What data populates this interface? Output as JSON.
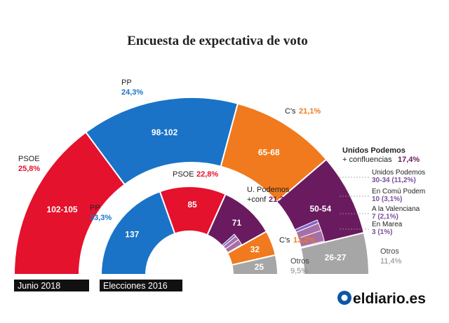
{
  "title": "Encuesta de expectativa de voto",
  "colors": {
    "psoe": "#e4122d",
    "pp": "#1a73c7",
    "cs": "#f07a1d",
    "podemos": "#6a1b5f",
    "podemos_sub": "#a86ea6",
    "enmarea": "#7f66c9",
    "otros": "#a6a6a6",
    "brand_blue": "#0b56a4"
  },
  "chart_data": [
    {
      "type": "donut-half",
      "name": "Junio 2018",
      "segments": [
        {
          "party": "PSOE",
          "label": "PSOE",
          "pct": "25,8%",
          "seats": "102-105",
          "value": 103.5,
          "color": "#e4122d"
        },
        {
          "party": "PP",
          "label": "PP",
          "pct": "24,3%",
          "seats": "98-102",
          "value": 100,
          "color": "#1a73c7"
        },
        {
          "party": "C's",
          "label": "C's",
          "pct": "21,1%",
          "seats": "65-68",
          "value": 66.5,
          "color": "#f07a1d"
        },
        {
          "party": "Unidos Podemos + confluencias",
          "label": "Unidos Podemos + confluencias",
          "label_lines": [
            "Unidos Podemos",
            "+ confluencias"
          ],
          "pct": "17,4%",
          "seats": "50-54",
          "value": 52,
          "color": "#6a1b5f",
          "subsegments": [
            {
              "label": "Unidos Podemos",
              "value_text": "30-34 (11,2%)",
              "value": 32
            },
            {
              "label": "En Comú Podem",
              "value_text": "10 (3,1%)",
              "value": 10
            },
            {
              "label": "A la Valenciana",
              "value_text": "7 (2,1%)",
              "value": 7
            },
            {
              "label": "En Marea",
              "value_text": "3 (1%)",
              "value": 3
            }
          ]
        },
        {
          "party": "Otros",
          "label": "Otros",
          "pct": "11,4%",
          "seats": "26-27",
          "value": 26.5,
          "color": "#a6a6a6"
        }
      ]
    },
    {
      "type": "donut-half",
      "name": "Elecciones 2016",
      "segments": [
        {
          "party": "PP",
          "label": "PP",
          "pct": "33,3%",
          "seats": "137",
          "value": 137,
          "color": "#1a73c7"
        },
        {
          "party": "PSOE",
          "label": "PSOE",
          "pct": "22,8%",
          "seats": "85",
          "value": 85,
          "color": "#e4122d"
        },
        {
          "party": "U. Podemos +conf",
          "label": "U. Podemos +conf",
          "label_lines": [
            "U. Podemos",
            "+conf"
          ],
          "pct": "21,3%",
          "seats": "71",
          "value": 71,
          "color": "#6a1b5f",
          "subsegments": [
            {
              "label": "Unidos Podemos",
              "value": 45
            },
            {
              "label": "En Comú Podem",
              "value": 12
            },
            {
              "label": "A la Valenciana",
              "value": 9
            },
            {
              "label": "En Marea",
              "value": 5
            }
          ]
        },
        {
          "party": "C's",
          "label": "C's",
          "pct": "13,2%",
          "seats": "32",
          "value": 32,
          "color": "#f07a1d"
        },
        {
          "party": "Otros",
          "label": "Otros",
          "pct": "9,5%",
          "seats": "25",
          "value": 25,
          "color": "#a6a6a6"
        }
      ]
    }
  ],
  "tags": [
    "Junio 2018",
    "Elecciones 2016"
  ],
  "logo_text": "eldiario.es"
}
